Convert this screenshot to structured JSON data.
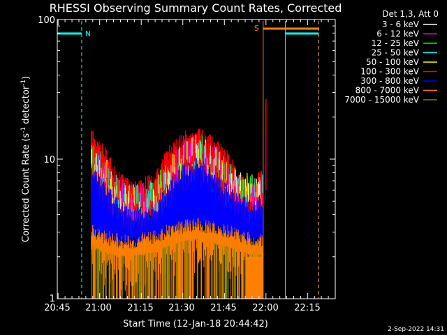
{
  "chart_data": {
    "type": "line",
    "title": "RHESSI Observing Summary Count Rates, Corrected",
    "xlabel": "Start Time (12-Jan-18 20:44:42)",
    "ylabel_main": "Corrected Count Rate (s",
    "ylabel_sup1": "-1",
    "ylabel_mid": " detector",
    "ylabel_sup2": "-1",
    "ylabel_end": ")",
    "yscale": "log",
    "ylim": [
      1,
      100
    ],
    "xlim": [
      "20:44:42",
      "22:25:00"
    ],
    "x_ticks": [
      "20:45",
      "21:00",
      "21:15",
      "21:30",
      "21:45",
      "22:00",
      "22:15"
    ],
    "y_ticks": [
      "1",
      "10",
      "100"
    ],
    "legend_title": "Det 1,3, Att 0",
    "legend_position": "right",
    "timestamp": "2-Sep-2022 14:31",
    "series": [
      {
        "name": "3 - 6 keV",
        "color": "#ffffff"
      },
      {
        "name": "6 - 12 keV",
        "color": "#ff00ff"
      },
      {
        "name": "12 - 25 keV",
        "color": "#00ff00"
      },
      {
        "name": "25 - 50 keV",
        "color": "#00ffff"
      },
      {
        "name": "50 - 100 keV",
        "color": "#ffff00"
      },
      {
        "name": "100 - 300 keV",
        "color": "#ff0000"
      },
      {
        "name": "300 - 800 keV",
        "color": "#0000ff"
      },
      {
        "name": "800 - 7000 keV",
        "color": "#ff8000"
      },
      {
        "name": "7000 - 15000 keV",
        "color": "#808000"
      }
    ],
    "envelopes": [
      {
        "series": "100 - 300 keV",
        "x": [
          "20:57",
          "21:00",
          "21:05",
          "21:10",
          "21:15",
          "21:20",
          "21:25",
          "21:30",
          "21:35",
          "21:40",
          "21:45",
          "21:50",
          "21:55",
          "21:59",
          "22:00"
        ],
        "y": [
          15,
          13,
          8,
          6.5,
          6.5,
          7,
          11,
          14,
          15,
          13,
          11,
          7,
          6,
          8,
          27
        ]
      },
      {
        "series": "300 - 800 keV",
        "x": [
          "20:57",
          "21:00",
          "21:05",
          "21:10",
          "21:15",
          "21:20",
          "21:25",
          "21:30",
          "21:35",
          "21:40",
          "21:45",
          "21:50",
          "21:55",
          "21:59",
          "22:00"
        ],
        "y": [
          8,
          7,
          5,
          4,
          4,
          4.2,
          6,
          8,
          9,
          8,
          6,
          5,
          4.5,
          5,
          15
        ]
      },
      {
        "series": "800 - 7000 keV",
        "x": [
          "20:57",
          "21:00",
          "21:05",
          "21:10",
          "21:15",
          "21:20",
          "21:25",
          "21:30",
          "21:35",
          "21:40",
          "21:45",
          "21:50",
          "21:55",
          "21:59"
        ],
        "y": [
          3,
          2.8,
          2.6,
          2.5,
          2.6,
          2.7,
          3,
          3.2,
          3.4,
          3.2,
          3,
          2.8,
          2.6,
          2.6
        ]
      }
    ],
    "annotations": {
      "night_label": "N",
      "saa_label": "S",
      "night_intervals": [
        [
          "20:44:42",
          "20:53:30"
        ],
        [
          "22:07:00",
          "22:19:00"
        ]
      ],
      "saa_intervals": [
        [
          "21:59:00",
          "22:19:00"
        ]
      ]
    }
  }
}
